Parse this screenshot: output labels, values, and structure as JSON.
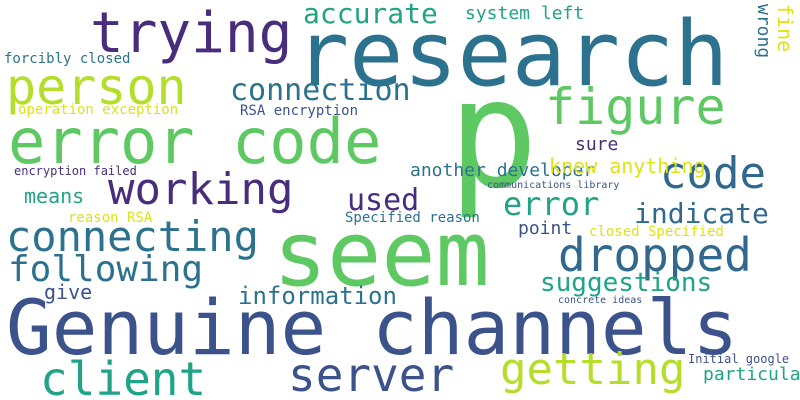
{
  "palette": {
    "purple_dark": "#482374",
    "indigo": "#3e4a89",
    "blue": "#31688e",
    "teal": "#26828e",
    "green_teal": "#1f9e89",
    "green": "#35b779",
    "light_green": "#6ece58",
    "yellow_green": "#b5de2b",
    "yellow": "#fde725"
  },
  "words": [
    {
      "text": "p",
      "color": "#5ec962"
    },
    {
      "text": "research",
      "color": "#2c728e"
    },
    {
      "text": "Genuine channels",
      "color": "#3b528b"
    },
    {
      "text": "seem",
      "color": "#5ec962"
    },
    {
      "text": "error code",
      "color": "#5ec962"
    },
    {
      "text": "trying",
      "color": "#472d7b"
    },
    {
      "text": "person",
      "color": "#b5de2b"
    },
    {
      "text": "figure",
      "color": "#5ec962"
    },
    {
      "text": "working",
      "color": "#472d7b"
    },
    {
      "text": "code",
      "color": "#31688e"
    },
    {
      "text": "dropped",
      "color": "#31688e"
    },
    {
      "text": "connecting",
      "color": "#2c728e"
    },
    {
      "text": "client",
      "color": "#20a386"
    },
    {
      "text": "server",
      "color": "#3b528b"
    },
    {
      "text": "getting",
      "color": "#b5de2b"
    },
    {
      "text": "following",
      "color": "#2c728e"
    },
    {
      "text": "accurate",
      "color": "#20a386"
    },
    {
      "text": "connection",
      "color": "#2c728e"
    },
    {
      "text": "error",
      "color": "#20a386"
    },
    {
      "text": "indicate",
      "color": "#31688e"
    },
    {
      "text": "used",
      "color": "#472d7b"
    },
    {
      "text": "information",
      "color": "#2c728e"
    },
    {
      "text": "suggestions",
      "color": "#20a386"
    },
    {
      "text": "system left",
      "color": "#20a386"
    },
    {
      "text": "sure",
      "color": "#472d7b"
    },
    {
      "text": "another developer",
      "color": "#2c728e"
    },
    {
      "text": "knew anything",
      "color": "#dde318"
    },
    {
      "text": "means",
      "color": "#20a386"
    },
    {
      "text": "give",
      "color": "#3b528b"
    },
    {
      "text": "point",
      "color": "#3b528b"
    },
    {
      "text": "particular",
      "color": "#20a386"
    },
    {
      "text": "fine",
      "color": "#dde318"
    },
    {
      "text": "wrong",
      "color": "#2c728e"
    },
    {
      "text": "forcibly closed",
      "color": "#2c728e"
    },
    {
      "text": "operation exception",
      "color": "#dde318"
    },
    {
      "text": "RSA encryption",
      "color": "#3b528b"
    },
    {
      "text": "encryption failed",
      "color": "#472d7b"
    },
    {
      "text": "reason RSA",
      "color": "#dde318"
    },
    {
      "text": "Specified reason",
      "color": "#2c728e"
    },
    {
      "text": "closed Specified",
      "color": "#dde318"
    },
    {
      "text": "communications library",
      "color": "#3b528b"
    },
    {
      "text": "concrete ideas",
      "color": "#3b528b"
    },
    {
      "text": "Initial google",
      "color": "#3b528b"
    }
  ]
}
